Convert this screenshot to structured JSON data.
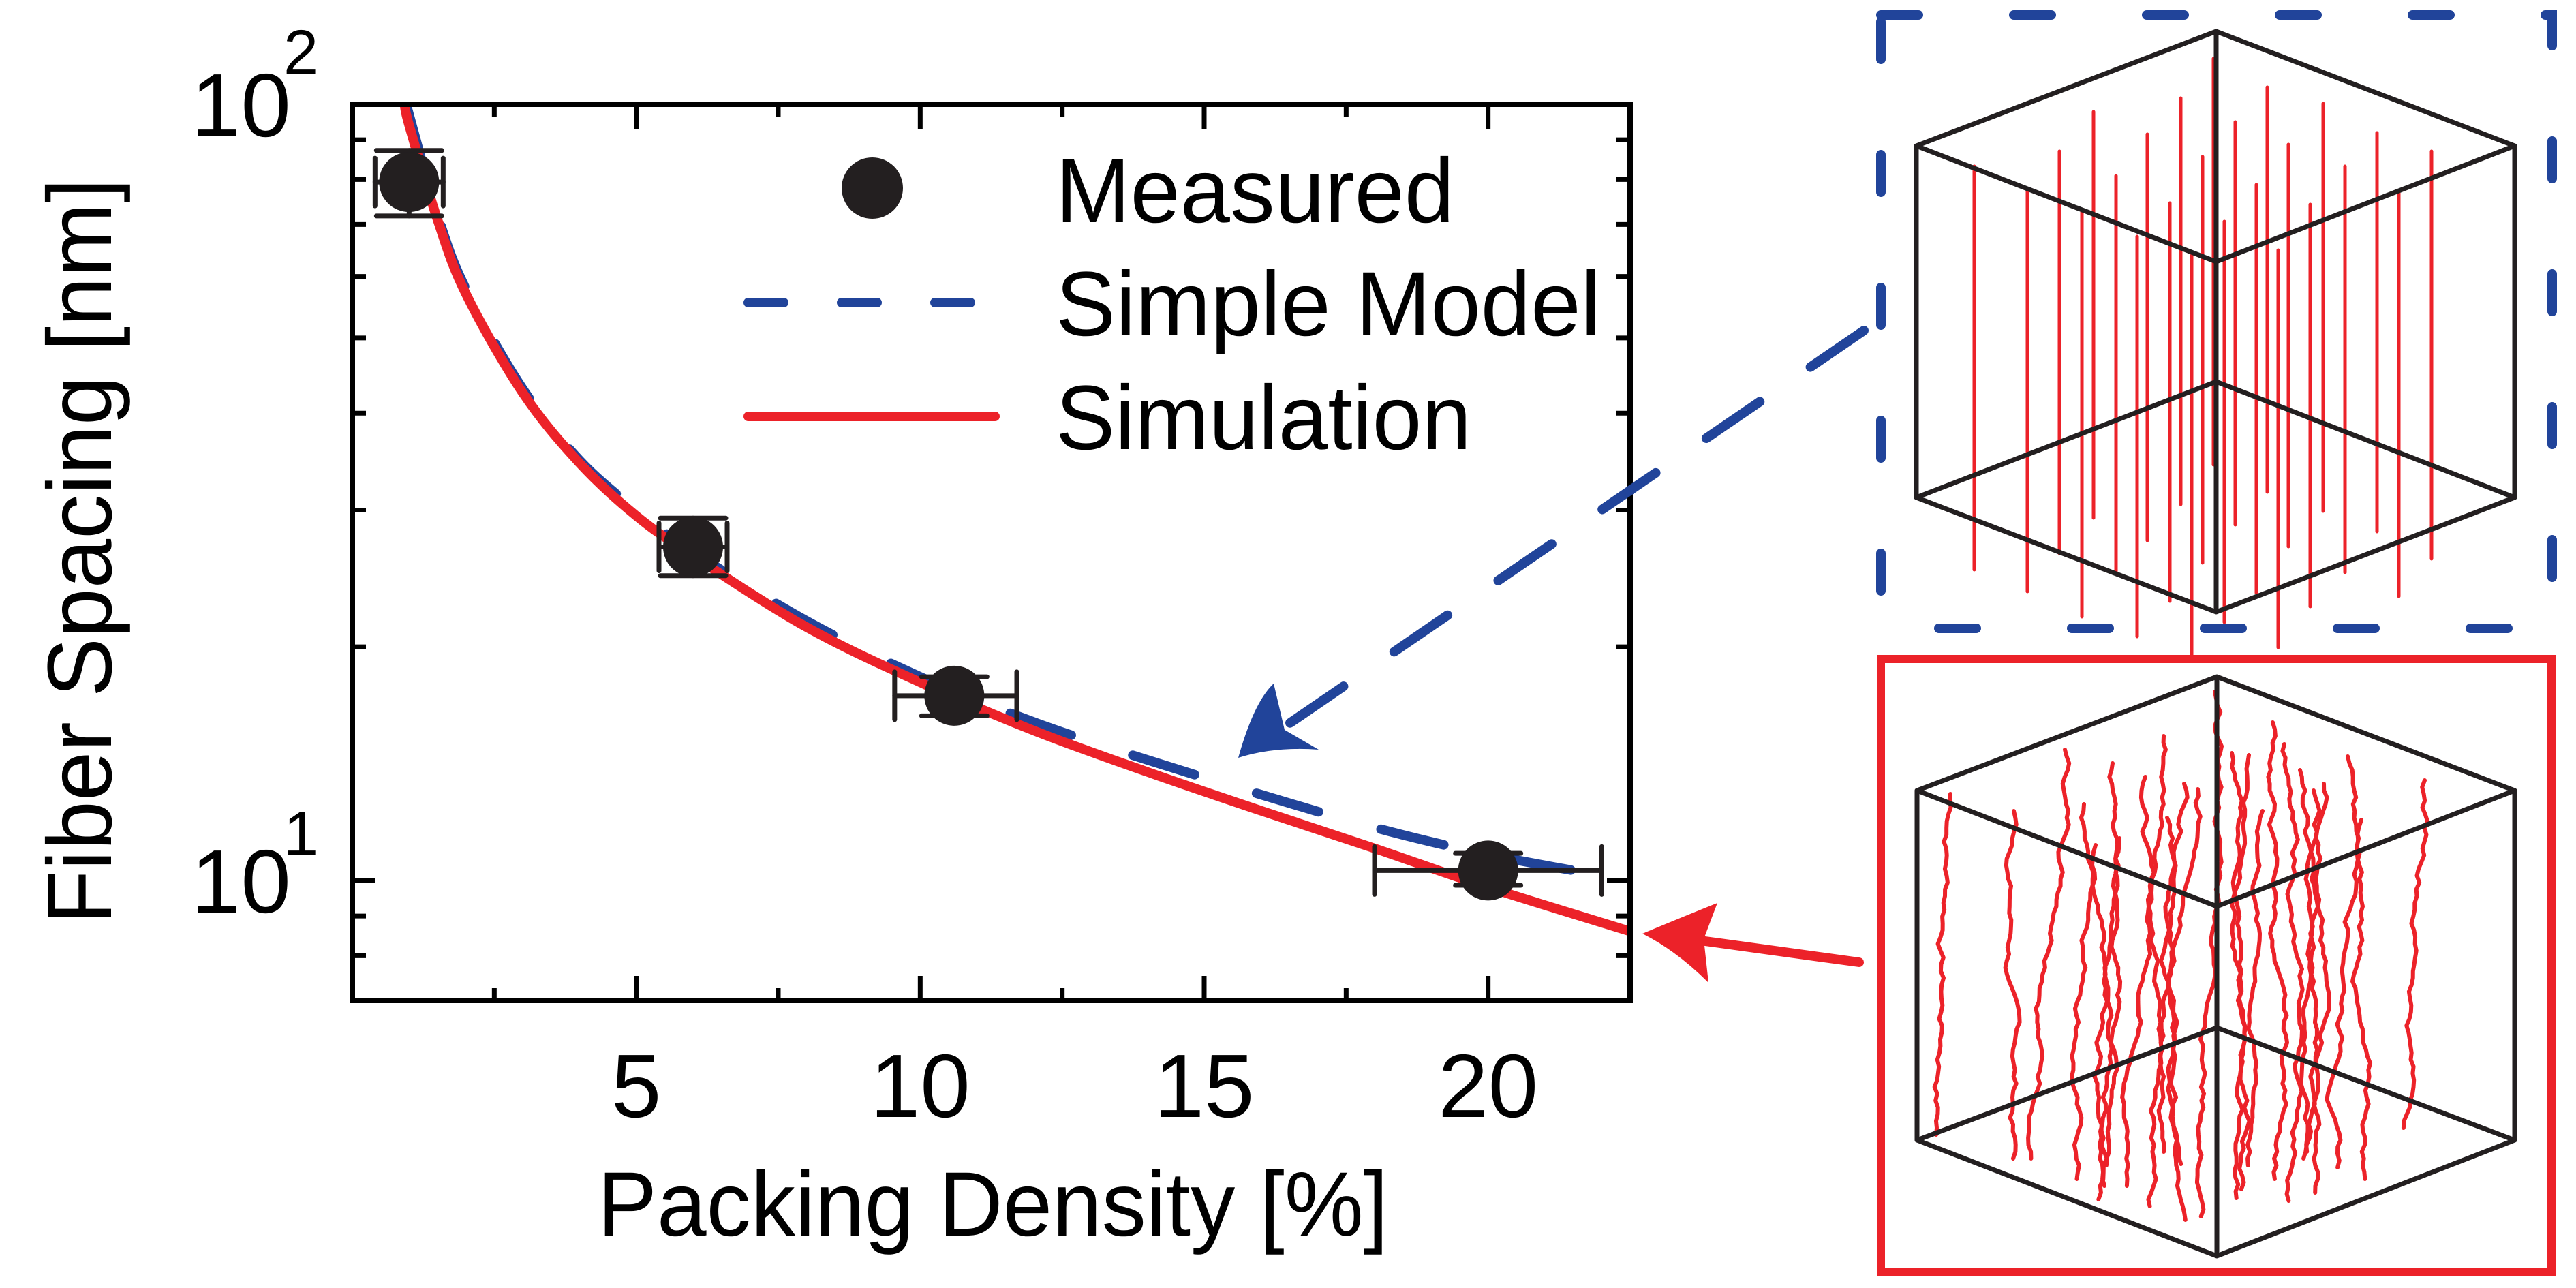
{
  "figure": {
    "colors": {
      "axis": "#000000",
      "marker": "#231f20",
      "simple_model": "#21449a",
      "simulation": "#ec2229",
      "cube_edge": "#231f20"
    },
    "insets": [
      {
        "name": "simple-model-inset",
        "border_style": "dashed",
        "border_color": "#21449a",
        "fiber_style": "straight",
        "fiber_color": "#ec2229"
      },
      {
        "name": "simulation-inset",
        "border_style": "solid",
        "border_color": "#ec2229",
        "fiber_style": "wavy",
        "fiber_color": "#ec2229"
      }
    ]
  },
  "chart_data": {
    "type": "scatter",
    "title": "",
    "xlabel": "Packing Density [%]",
    "ylabel": "Fiber Spacing [nm]",
    "xscale": "linear",
    "yscale": "log",
    "xlim": [
      0,
      22.5
    ],
    "ylim": [
      7.0,
      100
    ],
    "grid": false,
    "legend_position": "top-right",
    "x_ticks": [
      {
        "value": 5,
        "label": "5"
      },
      {
        "value": 10,
        "label": "10"
      },
      {
        "value": 15,
        "label": "15"
      },
      {
        "value": 20,
        "label": "20"
      }
    ],
    "x_minor_ticks": [
      2.5,
      7.5,
      12.5,
      17.5
    ],
    "y_ticks": [
      {
        "value": 10,
        "base": "10",
        "exp": "1"
      },
      {
        "value": 100,
        "base": "10",
        "exp": "2"
      }
    ],
    "y_minor_ticks": [
      8,
      9,
      20,
      30,
      40,
      50,
      60,
      70,
      80,
      90
    ],
    "series": [
      {
        "name": "Measured",
        "kind": "points",
        "points": [
          {
            "x": 1.0,
            "y": 79.4,
            "xerr": [
              0.4,
              1.6
            ],
            "yerr": [
              71.8,
              87.2
            ]
          },
          {
            "x": 6.0,
            "y": 26.9,
            "xerr": [
              5.4,
              6.6
            ],
            "yerr": [
              24.7,
              29.3
            ]
          },
          {
            "x": 10.6,
            "y": 17.3,
            "xerr": [
              9.55,
              11.7
            ],
            "yerr": [
              16.3,
              18.3
            ]
          },
          {
            "x": 20.0,
            "y": 10.3,
            "xerr": [
              18.0,
              22.0
            ],
            "yerr": [
              9.86,
              10.84
            ]
          }
        ]
      },
      {
        "name": "Simple Model",
        "kind": "dashed-line",
        "x": [
          0.95,
          1,
          1.5,
          2,
          3,
          4,
          5,
          6,
          8,
          10,
          12,
          14,
          16,
          18,
          20,
          22.5
        ],
        "y": [
          100,
          97,
          72,
          57.8,
          43,
          34.8,
          30,
          26.5,
          21.6,
          18.3,
          16.0,
          14.3,
          12.9,
          11.7,
          10.8,
          10.0
        ]
      },
      {
        "name": "Simulation",
        "kind": "solid-line",
        "x": [
          0.92,
          1,
          1.5,
          2,
          3,
          4,
          5,
          6,
          8,
          10,
          12,
          14,
          16,
          18,
          20,
          22.5
        ],
        "y": [
          100,
          94,
          71,
          57,
          42.5,
          34.5,
          29.5,
          26.2,
          21.2,
          18.0,
          15.6,
          13.8,
          12.3,
          11.0,
          9.8,
          8.6
        ]
      }
    ],
    "annotations": [
      {
        "type": "arrow",
        "style": "dashed",
        "color": "#21449a",
        "from": "simple-model-inset",
        "points_to": {
          "x": 15.6,
          "y": 14.5
        }
      },
      {
        "type": "arrow",
        "style": "solid",
        "color": "#ec2229",
        "from": "simulation-inset",
        "points_to": {
          "x": 22.7,
          "y": 8.6
        }
      }
    ]
  }
}
